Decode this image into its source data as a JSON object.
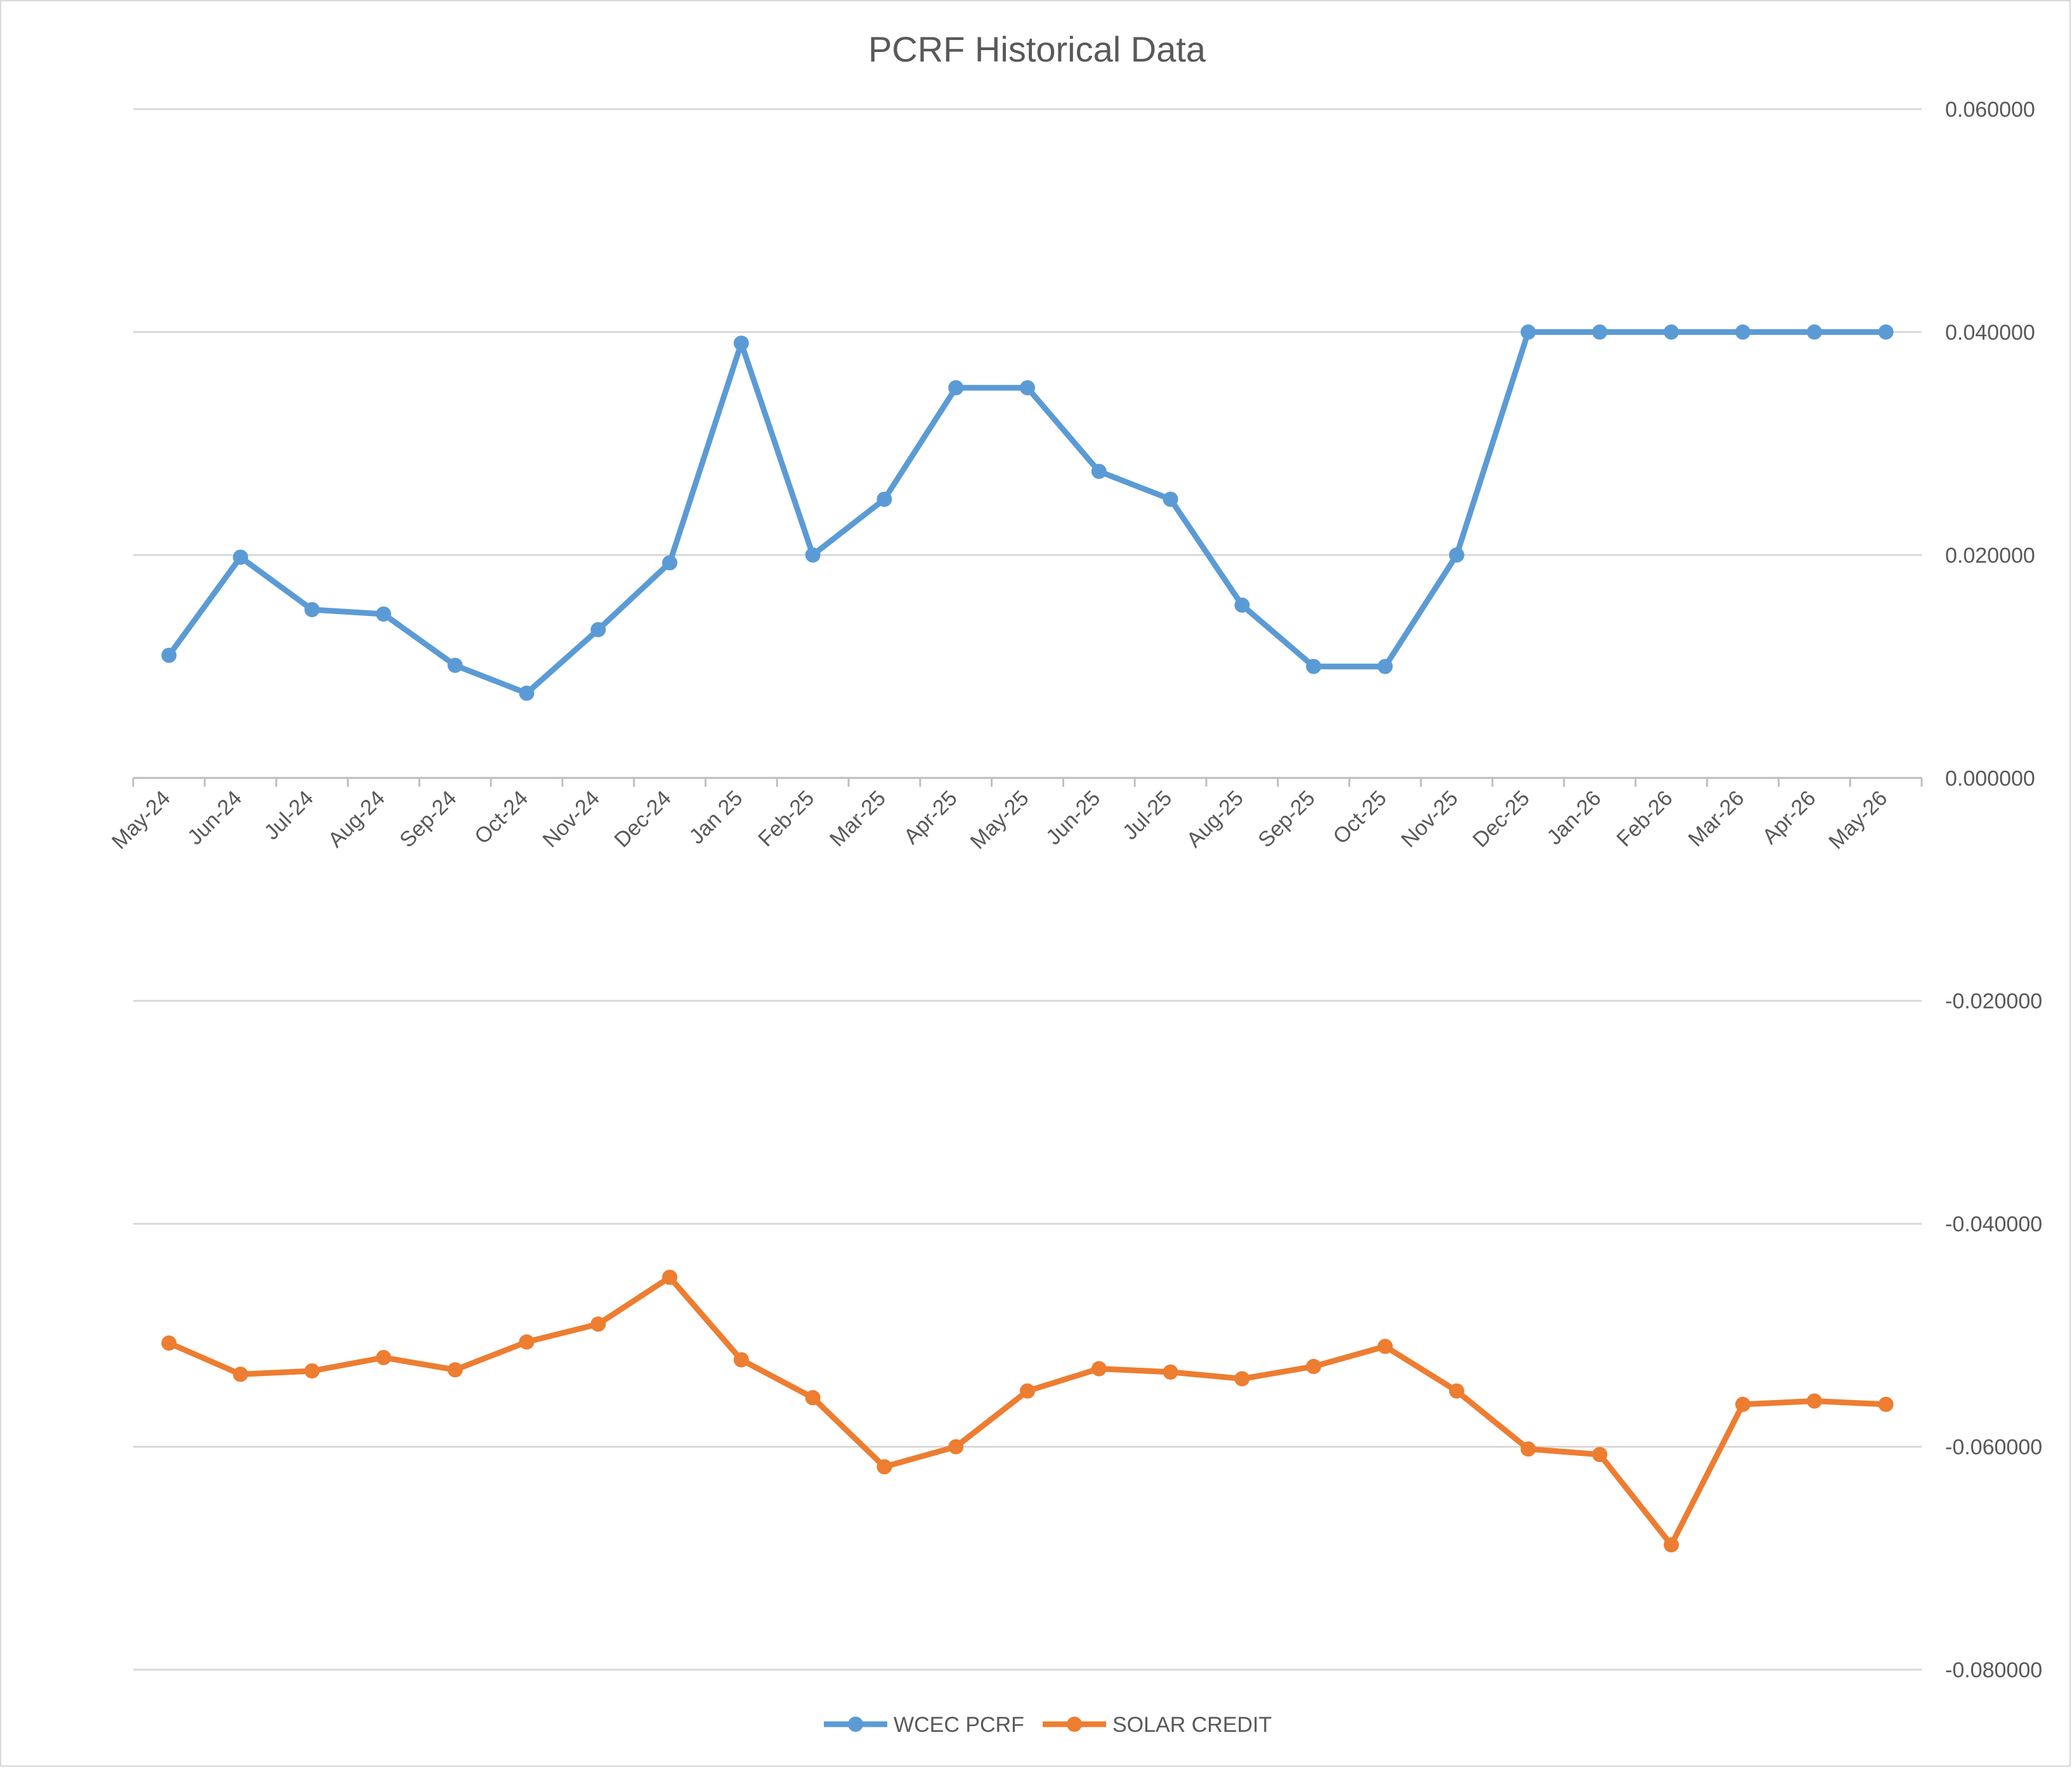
{
  "chart_data": {
    "type": "line",
    "title": "PCRF Historical Data",
    "xlabel": "",
    "ylabel": "",
    "categories": [
      "May-24",
      "Jun-24",
      "Jul-24",
      "Aug-24",
      "Sep-24",
      "Oct-24",
      "Nov-24",
      "Dec-24",
      "Jan 25",
      "Feb-25",
      "Mar-25",
      "Apr-25",
      "May-25",
      "Jun-25",
      "Jul-25",
      "Aug-25",
      "Sep-25",
      "Oct-25",
      "Nov-25",
      "Dec-25",
      "Jan-26",
      "Feb-26",
      "Mar-26",
      "Apr-26",
      "May-26"
    ],
    "ylim": [
      -0.08,
      0.06
    ],
    "yticks": [
      0.06,
      0.04,
      0.02,
      0.0,
      -0.02,
      -0.04,
      -0.06,
      -0.08
    ],
    "ytick_labels": [
      "0.060000",
      "0.040000",
      "0.020000",
      "0.000000",
      "-0.020000",
      "-0.040000",
      "-0.060000",
      "-0.080000"
    ],
    "y_axis_side": "right",
    "grid": true,
    "legend_position": "bottom",
    "series": [
      {
        "name": "WCEC PCRF",
        "color": "#5b9bd5",
        "values": [
          0.011,
          0.0198,
          0.0151,
          0.0147,
          0.0101,
          0.0076,
          0.0133,
          0.0193,
          0.039,
          0.02,
          0.025,
          0.035,
          0.035,
          0.0275,
          0.025,
          0.0155,
          0.01,
          0.01,
          0.02,
          0.04,
          0.04,
          0.04,
          0.04,
          0.04,
          0.04
        ]
      },
      {
        "name": "SOLAR CREDIT",
        "color": "#ed7d31",
        "values": [
          -0.0507,
          -0.0535,
          -0.0532,
          -0.052,
          -0.0531,
          -0.0506,
          -0.049,
          -0.0448,
          -0.0522,
          -0.0556,
          -0.0618,
          -0.06,
          -0.055,
          -0.053,
          -0.0533,
          -0.0539,
          -0.0528,
          -0.051,
          -0.055,
          -0.0602,
          -0.0607,
          -0.0688,
          -0.0562,
          -0.0559,
          -0.0562
        ]
      }
    ]
  }
}
